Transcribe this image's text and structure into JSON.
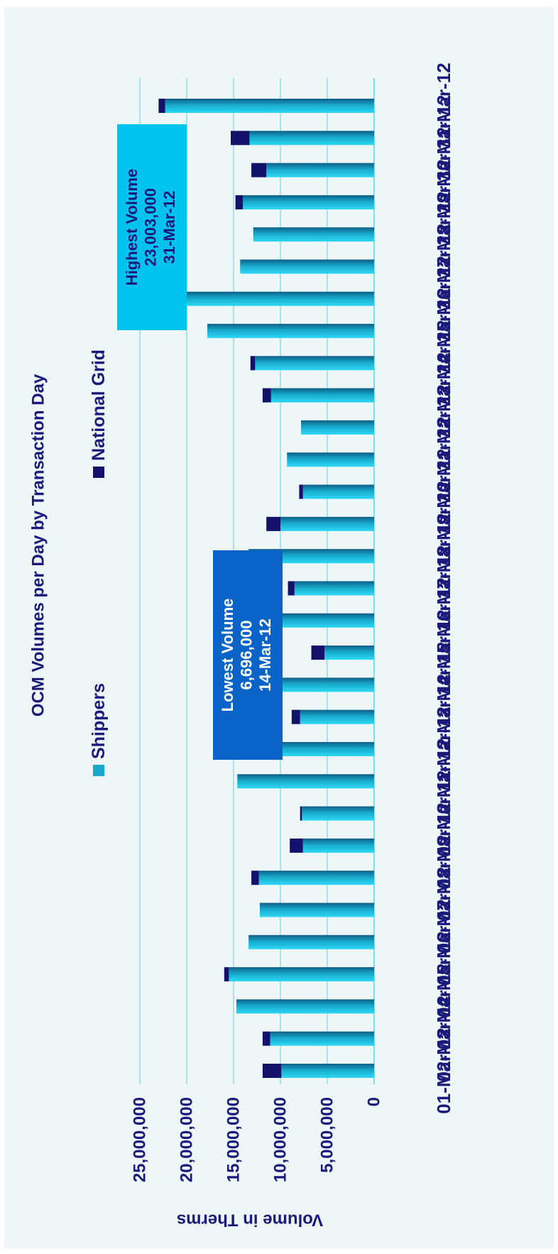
{
  "colors": {
    "background": "#eef6f7",
    "shippers": "#17a9cc",
    "national_grid": "#12126b",
    "gridline": "#5fd0e8",
    "text": "#1a1a7a",
    "highest_box": "#00c2ee",
    "lowest_box": "#0a64c8"
  },
  "chart_data": {
    "type": "bar",
    "orientation": "horizontal-stacked",
    "title": "OCM Volumes per Day by Transaction Day",
    "ylabel": "Volume in Therms",
    "xlim": [
      0,
      25000000
    ],
    "ticks": [
      {
        "value": 0,
        "label": "0"
      },
      {
        "value": 5000000,
        "label": "5,000,000"
      },
      {
        "value": 10000000,
        "label": "10,000,000"
      },
      {
        "value": 15000000,
        "label": "15,000,000"
      },
      {
        "value": 20000000,
        "label": "20,000,000"
      },
      {
        "value": 25000000,
        "label": "25,000,000"
      }
    ],
    "grid": true,
    "legend_position": "top",
    "categories": [
      "01-Mar-12",
      "02-Mar-12",
      "03-Mar-12",
      "04-Mar-12",
      "05-Mar-12",
      "06-Mar-12",
      "07-Mar-12",
      "08-Mar-12",
      "09-Mar-12",
      "10-Mar-12",
      "11-Mar-12",
      "12-Mar-12",
      "13-Mar-12",
      "14-Mar-12",
      "15-Mar-12",
      "16-Mar-12",
      "17-Mar-12",
      "18-Mar-12",
      "19-Mar-12",
      "20-Mar-12",
      "21-Mar-12",
      "22-Mar-12",
      "23-Mar-12",
      "24-Mar-12",
      "25-Mar-12",
      "26-Mar-12",
      "27-Mar-12",
      "28-Mar-12",
      "29-Mar-12",
      "30-Mar-12",
      "31-Mar-12"
    ],
    "series": [
      {
        "name": "Shippers",
        "values": [
          9900000,
          11100000,
          14700000,
          15500000,
          13400000,
          12200000,
          12300000,
          7600000,
          7700000,
          14600000,
          9900000,
          7900000,
          9900000,
          5300000,
          9900000,
          8500000,
          13400000,
          10000000,
          7600000,
          9300000,
          7800000,
          11000000,
          12700000,
          17800000,
          20000000,
          14300000,
          12900000,
          14000000,
          11500000,
          13300000,
          22300000
        ]
      },
      {
        "name": "National Grid",
        "values": [
          2000000,
          800000,
          0,
          500000,
          0,
          0,
          800000,
          1400000,
          200000,
          0,
          0,
          900000,
          0,
          1400000,
          0,
          700000,
          0,
          1500000,
          400000,
          0,
          0,
          900000,
          500000,
          0,
          0,
          0,
          0,
          800000,
          1600000,
          2000000,
          700000
        ]
      }
    ],
    "annotations": [
      {
        "key": "highest",
        "lines": [
          "Highest Volume",
          "23,003,000",
          "31-Mar-12"
        ]
      },
      {
        "key": "lowest",
        "lines": [
          "Lowest Volume",
          "6,696,000",
          "14-Mar-12"
        ]
      }
    ]
  }
}
